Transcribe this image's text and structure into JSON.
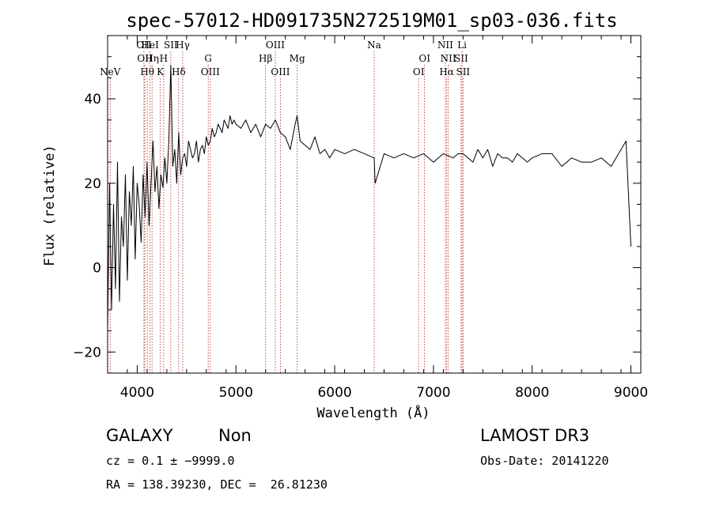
{
  "chart_data": {
    "type": "line",
    "title": "spec-57012-HD091735N272519M01_sp03-036.fits",
    "xlabel": "Wavelength (Å)",
    "ylabel": "Flux (relative)",
    "xlim": [
      3700,
      9100
    ],
    "ylim": [
      -25,
      55
    ],
    "x_ticks": [
      4000,
      5000,
      6000,
      7000,
      8000,
      9000
    ],
    "y_ticks": [
      -20,
      0,
      20,
      40
    ],
    "grid": false,
    "series": [
      {
        "x": [
          3700,
          3720,
          3740,
          3760,
          3780,
          3800,
          3820,
          3840,
          3860,
          3880,
          3900,
          3920,
          3940,
          3960,
          3980,
          4000,
          4020,
          4040,
          4060,
          4080,
          4100,
          4120,
          4140,
          4160,
          4180,
          4200,
          4220,
          4240,
          4260,
          4280,
          4300,
          4320,
          4340,
          4360,
          4380,
          4400,
          4420,
          4440,
          4460,
          4480,
          4500,
          4520,
          4540,
          4560,
          4580,
          4600,
          4620,
          4640,
          4660,
          4680,
          4700,
          4720,
          4740,
          4760,
          4780,
          4800,
          4820,
          4840,
          4860,
          4880,
          4900,
          4920,
          4940,
          4960,
          4980,
          5000,
          5050,
          5100,
          5150,
          5200,
          5250,
          5300,
          5350,
          5400,
          5450,
          5500,
          5550,
          5600,
          5620,
          5650,
          5700,
          5750,
          5800,
          5850,
          5900,
          5950,
          6000,
          6100,
          6200,
          6300,
          6400,
          6410,
          6500,
          6600,
          6700,
          6800,
          6900,
          7000,
          7100,
          7200,
          7250,
          7300,
          7350,
          7400,
          7450,
          7500,
          7550,
          7600,
          7650,
          7700,
          7750,
          7800,
          7850,
          7900,
          7950,
          8000,
          8100,
          8200,
          8300,
          8400,
          8500,
          8600,
          8700,
          8800,
          8850,
          8900,
          8950,
          9000
        ],
        "y": [
          -15,
          20,
          -10,
          15,
          -5,
          25,
          -8,
          12,
          5,
          22,
          -3,
          18,
          10,
          24,
          2,
          20,
          15,
          6,
          22,
          12,
          25,
          10,
          20,
          30,
          18,
          24,
          14,
          22,
          19,
          26,
          20,
          30,
          48,
          24,
          28,
          20,
          32,
          22,
          26,
          27,
          24,
          30,
          28,
          26,
          27,
          30,
          25,
          28,
          29,
          27,
          31,
          29,
          30,
          33,
          31,
          32,
          34,
          33,
          32,
          35,
          34,
          33,
          36,
          34,
          35,
          34,
          33,
          35,
          32,
          34,
          31,
          34,
          33,
          35,
          32,
          31,
          28,
          34,
          36,
          30,
          29,
          28,
          31,
          27,
          28,
          26,
          28,
          27,
          28,
          27,
          26,
          20,
          27,
          26,
          27,
          26,
          27,
          25,
          27,
          26,
          27,
          27,
          26,
          25,
          28,
          26,
          28,
          24,
          27,
          26,
          26,
          25,
          27,
          26,
          25,
          26,
          27,
          27,
          24,
          26,
          25,
          25,
          26,
          24,
          26,
          28,
          30,
          5
        ]
      }
    ],
    "emission_lines": [
      {
        "label": "NeV",
        "x": 3726,
        "row": 3
      },
      {
        "label": "OII",
        "x": 4068,
        "row": 1
      },
      {
        "label": "OII",
        "x": 4077,
        "row": 2
      },
      {
        "label": "Hθ",
        "x": 4102,
        "row": 3
      },
      {
        "label": "HeI",
        "x": 4130,
        "row": 1
      },
      {
        "label": "Hη",
        "x": 4150,
        "row": 2
      },
      {
        "label": "K",
        "x": 4234,
        "row": 3
      },
      {
        "label": "H",
        "x": 4268,
        "row": 2
      },
      {
        "label": "SII",
        "x": 4340,
        "row": 1
      },
      {
        "label": "Hδ",
        "x": 4420,
        "row": 3
      },
      {
        "label": "Hγ",
        "x": 4461,
        "row": 1
      },
      {
        "label": "G",
        "x": 4719,
        "row": 2
      },
      {
        "label": "OIII",
        "x": 4740,
        "row": 3
      },
      {
        "label": "Hβ",
        "x": 5300,
        "row": 2
      },
      {
        "label": "OIII",
        "x": 5398,
        "row": 1
      },
      {
        "label": "OIII",
        "x": 5450,
        "row": 3
      },
      {
        "label": "Mg",
        "x": 5620,
        "row": 2
      },
      {
        "label": "Na",
        "x": 6400,
        "row": 1
      },
      {
        "label": "OI",
        "x": 6850,
        "row": 3
      },
      {
        "label": "OI",
        "x": 6910,
        "row": 2
      },
      {
        "label": "NII",
        "x": 7120,
        "row": 1
      },
      {
        "label": "NII",
        "x": 7150,
        "row": 2
      },
      {
        "label": "Hα",
        "x": 7134,
        "row": 3
      },
      {
        "label": "SII",
        "x": 7280,
        "row": 2
      },
      {
        "label": "Li",
        "x": 7290,
        "row": 1
      },
      {
        "label": "SII",
        "x": 7300,
        "row": 3
      }
    ]
  },
  "info": {
    "class": "GALAXY",
    "subclass": "Non",
    "cz": "cz = 0.1 ± −9999.0",
    "coords": "RA = 138.39230, DEC =  26.81230",
    "survey": "LAMOST DR3",
    "obs_date": "Obs-Date: 20141220"
  }
}
